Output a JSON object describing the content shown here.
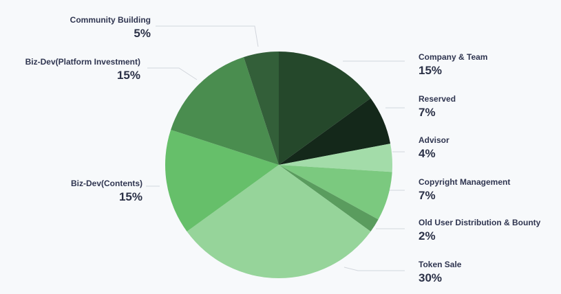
{
  "chart_data": {
    "type": "pie",
    "title": "",
    "slices": [
      {
        "label": "Company & Team",
        "value": 15,
        "value_label": "15%",
        "color": "#25482b"
      },
      {
        "label": "Reserved",
        "value": 7,
        "value_label": "7%",
        "color": "#14281a"
      },
      {
        "label": "Advisor",
        "value": 4,
        "value_label": "4%",
        "color": "#a3dca9"
      },
      {
        "label": "Copyright Management",
        "value": 7,
        "value_label": "7%",
        "color": "#7bc97f"
      },
      {
        "label": "Old User Distribution & Bounty",
        "value": 2,
        "value_label": "2%",
        "color": "#5a9c5e"
      },
      {
        "label": "Token Sale",
        "value": 30,
        "value_label": "30%",
        "color": "#96d49a"
      },
      {
        "label": "Biz-Dev(Contents)",
        "value": 15,
        "value_label": "15%",
        "color": "#66bf6a"
      },
      {
        "label": "Biz-Dev(Platform Investment)",
        "value": 15,
        "value_label": "15%",
        "color": "#4a8d4f"
      },
      {
        "label": "Community Building",
        "value": 5,
        "value_label": "5%",
        "color": "#335f39"
      }
    ],
    "leader_line_color": "#d2d6dc"
  }
}
